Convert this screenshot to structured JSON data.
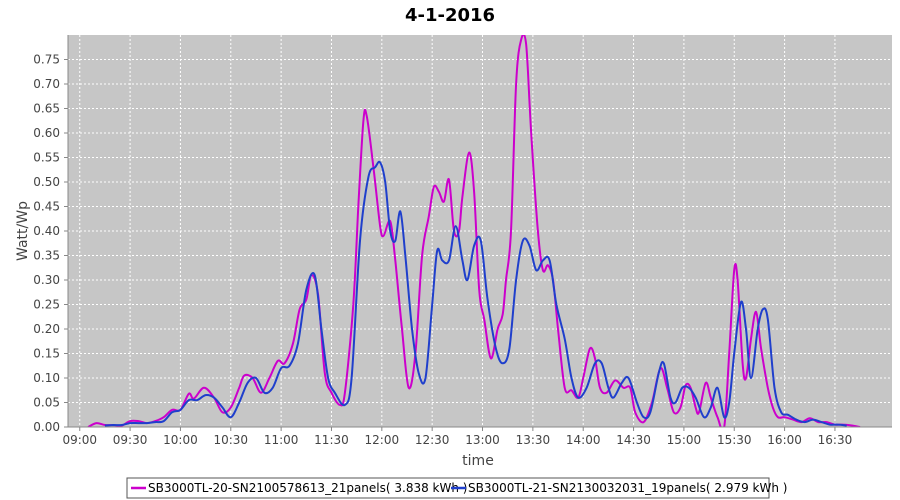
{
  "chart_data": {
    "type": "line",
    "title": "4-1-2016",
    "xlabel": "time",
    "ylabel": "Watt/Wp",
    "x_ticks": [
      "09:00",
      "09:30",
      "10:00",
      "10:30",
      "11:00",
      "11:30",
      "12:00",
      "12:30",
      "13:00",
      "13:30",
      "14:00",
      "14:30",
      "15:00",
      "15:30",
      "16:00",
      "16:30"
    ],
    "y_ticks": [
      "0.00",
      "0.05",
      "0.10",
      "0.15",
      "0.20",
      "0.25",
      "0.30",
      "0.35",
      "0.40",
      "0.45",
      "0.50",
      "0.55",
      "0.60",
      "0.65",
      "0.70",
      "0.75"
    ],
    "xlim": [
      "08:53",
      "17:04"
    ],
    "ylim": [
      0,
      0.8
    ],
    "grid": true,
    "legend_position": "bottom",
    "series": [
      {
        "name": "SB3000TL-20-SN2100578613_21panels( 3.838 kWh )",
        "color": "#cc00cc",
        "points": [
          [
            "09:05",
            0.0
          ],
          [
            "09:10",
            0.008
          ],
          [
            "09:15",
            0.004
          ],
          [
            "09:20",
            0.004
          ],
          [
            "09:25",
            0.003
          ],
          [
            "09:30",
            0.012
          ],
          [
            "09:35",
            0.012
          ],
          [
            "09:40",
            0.008
          ],
          [
            "09:45",
            0.012
          ],
          [
            "09:50",
            0.02
          ],
          [
            "09:55",
            0.035
          ],
          [
            "10:00",
            0.035
          ],
          [
            "10:05",
            0.068
          ],
          [
            "10:08",
            0.058
          ],
          [
            "10:14",
            0.08
          ],
          [
            "10:20",
            0.06
          ],
          [
            "10:25",
            0.03
          ],
          [
            "10:30",
            0.04
          ],
          [
            "10:35",
            0.08
          ],
          [
            "10:38",
            0.105
          ],
          [
            "10:43",
            0.1
          ],
          [
            "10:48",
            0.07
          ],
          [
            "10:53",
            0.1
          ],
          [
            "10:58",
            0.135
          ],
          [
            "11:02",
            0.13
          ],
          [
            "11:07",
            0.17
          ],
          [
            "11:11",
            0.24
          ],
          [
            "11:15",
            0.26
          ],
          [
            "11:18",
            0.31
          ],
          [
            "11:22",
            0.27
          ],
          [
            "11:26",
            0.11
          ],
          [
            "11:30",
            0.07
          ],
          [
            "11:35",
            0.045
          ],
          [
            "11:38",
            0.07
          ],
          [
            "11:43",
            0.25
          ],
          [
            "11:46",
            0.45
          ],
          [
            "11:49",
            0.625
          ],
          [
            "11:51",
            0.635
          ],
          [
            "11:55",
            0.53
          ],
          [
            "11:59",
            0.41
          ],
          [
            "12:01",
            0.39
          ],
          [
            "12:05",
            0.42
          ],
          [
            "12:08",
            0.34
          ],
          [
            "12:12",
            0.2
          ],
          [
            "12:16",
            0.08
          ],
          [
            "12:20",
            0.15
          ],
          [
            "12:24",
            0.35
          ],
          [
            "12:28",
            0.43
          ],
          [
            "12:31",
            0.49
          ],
          [
            "12:34",
            0.48
          ],
          [
            "12:37",
            0.46
          ],
          [
            "12:40",
            0.505
          ],
          [
            "12:43",
            0.4
          ],
          [
            "12:46",
            0.4
          ],
          [
            "12:48",
            0.47
          ],
          [
            "12:52",
            0.56
          ],
          [
            "12:55",
            0.48
          ],
          [
            "12:58",
            0.28
          ],
          [
            "13:01",
            0.22
          ],
          [
            "13:05",
            0.14
          ],
          [
            "13:09",
            0.2
          ],
          [
            "13:12",
            0.23
          ],
          [
            "13:14",
            0.3
          ],
          [
            "13:17",
            0.4
          ],
          [
            "13:20",
            0.7
          ],
          [
            "13:23",
            0.79
          ],
          [
            "13:26",
            0.78
          ],
          [
            "13:29",
            0.6
          ],
          [
            "13:33",
            0.4
          ],
          [
            "13:36",
            0.32
          ],
          [
            "13:39",
            0.33
          ],
          [
            "13:42",
            0.3
          ],
          [
            "13:45",
            0.2
          ],
          [
            "13:49",
            0.08
          ],
          [
            "13:53",
            0.075
          ],
          [
            "13:57",
            0.06
          ],
          [
            "14:00",
            0.1
          ],
          [
            "14:04",
            0.16
          ],
          [
            "14:07",
            0.14
          ],
          [
            "14:10",
            0.08
          ],
          [
            "14:14",
            0.07
          ],
          [
            "14:19",
            0.095
          ],
          [
            "14:24",
            0.08
          ],
          [
            "14:28",
            0.08
          ],
          [
            "14:31",
            0.03
          ],
          [
            "14:36",
            0.01
          ],
          [
            "14:41",
            0.05
          ],
          [
            "14:46",
            0.12
          ],
          [
            "14:50",
            0.08
          ],
          [
            "14:54",
            0.03
          ],
          [
            "14:58",
            0.04
          ],
          [
            "15:01",
            0.085
          ],
          [
            "15:04",
            0.08
          ],
          [
            "15:07",
            0.04
          ],
          [
            "15:09",
            0.03
          ],
          [
            "15:13",
            0.09
          ],
          [
            "15:16",
            0.06
          ],
          [
            "15:20",
            0.02
          ],
          [
            "15:24",
            0.0
          ],
          [
            "15:27",
            0.15
          ],
          [
            "15:30",
            0.32
          ],
          [
            "15:32",
            0.3
          ],
          [
            "15:35",
            0.13
          ],
          [
            "15:37",
            0.1
          ],
          [
            "15:40",
            0.18
          ],
          [
            "15:43",
            0.235
          ],
          [
            "15:46",
            0.16
          ],
          [
            "15:50",
            0.08
          ],
          [
            "15:53",
            0.04
          ],
          [
            "15:56",
            0.02
          ],
          [
            "16:00",
            0.02
          ],
          [
            "16:05",
            0.015
          ],
          [
            "16:10",
            0.01
          ],
          [
            "16:15",
            0.018
          ],
          [
            "16:20",
            0.01
          ],
          [
            "16:25",
            0.01
          ],
          [
            "16:30",
            0.005
          ],
          [
            "16:35",
            0.005
          ],
          [
            "16:40",
            0.003
          ],
          [
            "16:45",
            0.0
          ]
        ]
      },
      {
        "name": "SB3000TL-21-SN2130032031_19panels( 2.979 kWh )",
        "color": "#1f3fcc",
        "points": [
          [
            "09:15",
            0.003
          ],
          [
            "09:20",
            0.004
          ],
          [
            "09:25",
            0.004
          ],
          [
            "09:30",
            0.008
          ],
          [
            "09:35",
            0.008
          ],
          [
            "09:40",
            0.008
          ],
          [
            "09:45",
            0.01
          ],
          [
            "09:50",
            0.012
          ],
          [
            "09:55",
            0.03
          ],
          [
            "10:00",
            0.035
          ],
          [
            "10:05",
            0.055
          ],
          [
            "10:10",
            0.055
          ],
          [
            "10:15",
            0.065
          ],
          [
            "10:20",
            0.06
          ],
          [
            "10:25",
            0.04
          ],
          [
            "10:30",
            0.02
          ],
          [
            "10:35",
            0.05
          ],
          [
            "10:40",
            0.09
          ],
          [
            "10:45",
            0.1
          ],
          [
            "10:50",
            0.07
          ],
          [
            "10:55",
            0.08
          ],
          [
            "11:00",
            0.12
          ],
          [
            "11:05",
            0.125
          ],
          [
            "11:10",
            0.17
          ],
          [
            "11:15",
            0.28
          ],
          [
            "11:20",
            0.31
          ],
          [
            "11:24",
            0.2
          ],
          [
            "11:28",
            0.1
          ],
          [
            "11:32",
            0.07
          ],
          [
            "11:38",
            0.045
          ],
          [
            "11:42",
            0.1
          ],
          [
            "11:47",
            0.38
          ],
          [
            "11:52",
            0.51
          ],
          [
            "11:56",
            0.53
          ],
          [
            "11:59",
            0.54
          ],
          [
            "12:02",
            0.5
          ],
          [
            "12:05",
            0.4
          ],
          [
            "12:08",
            0.38
          ],
          [
            "12:11",
            0.44
          ],
          [
            "12:14",
            0.35
          ],
          [
            "12:18",
            0.2
          ],
          [
            "12:22",
            0.11
          ],
          [
            "12:26",
            0.1
          ],
          [
            "12:30",
            0.25
          ],
          [
            "12:33",
            0.36
          ],
          [
            "12:36",
            0.34
          ],
          [
            "12:40",
            0.34
          ],
          [
            "12:44",
            0.41
          ],
          [
            "12:48",
            0.34
          ],
          [
            "12:51",
            0.3
          ],
          [
            "12:55",
            0.37
          ],
          [
            "12:59",
            0.38
          ],
          [
            "13:03",
            0.26
          ],
          [
            "13:08",
            0.16
          ],
          [
            "13:12",
            0.13
          ],
          [
            "13:16",
            0.16
          ],
          [
            "13:20",
            0.3
          ],
          [
            "13:24",
            0.38
          ],
          [
            "13:28",
            0.37
          ],
          [
            "13:32",
            0.32
          ],
          [
            "13:36",
            0.34
          ],
          [
            "13:40",
            0.34
          ],
          [
            "13:44",
            0.25
          ],
          [
            "13:49",
            0.18
          ],
          [
            "13:53",
            0.1
          ],
          [
            "13:57",
            0.06
          ],
          [
            "14:02",
            0.08
          ],
          [
            "14:07",
            0.13
          ],
          [
            "14:11",
            0.13
          ],
          [
            "14:15",
            0.08
          ],
          [
            "14:18",
            0.06
          ],
          [
            "14:23",
            0.09
          ],
          [
            "14:27",
            0.1
          ],
          [
            "14:32",
            0.05
          ],
          [
            "14:36",
            0.02
          ],
          [
            "14:40",
            0.03
          ],
          [
            "14:45",
            0.11
          ],
          [
            "14:48",
            0.13
          ],
          [
            "14:52",
            0.06
          ],
          [
            "14:55",
            0.05
          ],
          [
            "14:59",
            0.08
          ],
          [
            "15:03",
            0.08
          ],
          [
            "15:07",
            0.06
          ],
          [
            "15:12",
            0.02
          ],
          [
            "15:16",
            0.04
          ],
          [
            "15:20",
            0.08
          ],
          [
            "15:24",
            0.02
          ],
          [
            "15:27",
            0.05
          ],
          [
            "15:30",
            0.15
          ],
          [
            "15:34",
            0.255
          ],
          [
            "15:37",
            0.2
          ],
          [
            "15:40",
            0.1
          ],
          [
            "15:44",
            0.2
          ],
          [
            "15:47",
            0.24
          ],
          [
            "15:50",
            0.22
          ],
          [
            "15:54",
            0.08
          ],
          [
            "15:58",
            0.03
          ],
          [
            "16:02",
            0.025
          ],
          [
            "16:07",
            0.015
          ],
          [
            "16:12",
            0.01
          ],
          [
            "16:17",
            0.015
          ],
          [
            "16:22",
            0.01
          ],
          [
            "16:27",
            0.005
          ],
          [
            "16:32",
            0.005
          ],
          [
            "16:37",
            0.003
          ]
        ]
      }
    ]
  }
}
